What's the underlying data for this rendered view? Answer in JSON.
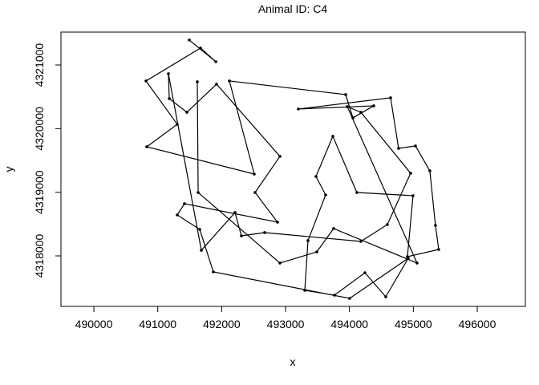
{
  "chart_data": {
    "type": "line",
    "title": "Animal ID: C4",
    "x_label": "x",
    "y_label": "y",
    "x": [
      491493,
      491908,
      491669,
      490816,
      491305,
      490828,
      492510,
      492121,
      493941,
      494054,
      494380,
      493200,
      494644,
      494769,
      495033,
      495258,
      495346,
      495397,
      494907,
      494995,
      494116,
      493740,
      493476,
      493627,
      493351,
      493301,
      493765,
      494242,
      494568,
      494920,
      494003,
      491870,
      491657,
      491305,
      491418,
      492874,
      492523,
      492912,
      491920,
      491456,
      491180,
      491167,
      491682,
      492209,
      492309,
      492673,
      494179,
      494593,
      494957,
      494179,
      493966,
      495058,
      493752,
      493489,
      492912,
      491632,
      491619
    ],
    "values": [
      4321392,
      4321052,
      4321266,
      4320749,
      4320068,
      4319715,
      4319286,
      4320749,
      4320535,
      4320169,
      4320358,
      4320308,
      4320484,
      4319690,
      4319728,
      4319337,
      4318479,
      4318101,
      4317987,
      4318946,
      4318996,
      4319879,
      4319248,
      4318958,
      4318240,
      4317458,
      4317382,
      4317735,
      4317357,
      4317962,
      4317332,
      4317748,
      4318416,
      4318643,
      4318820,
      4318530,
      4318996,
      4319564,
      4320699,
      4320257,
      4320472,
      4320862,
      4318088,
      4318681,
      4318315,
      4318366,
      4318227,
      4318492,
      4319299,
      4320257,
      4320345,
      4317887,
      4318429,
      4318063,
      4317887,
      4318996,
      4320736
    ],
    "color": "#000000",
    "xlim": [
      489485,
      496753
    ],
    "ylim": [
      4317206,
      4321517
    ],
    "xticks": [
      490000,
      491000,
      492000,
      493000,
      494000,
      495000,
      496000
    ],
    "yticks": [
      4318000,
      4319000,
      4320000,
      4321000
    ]
  }
}
